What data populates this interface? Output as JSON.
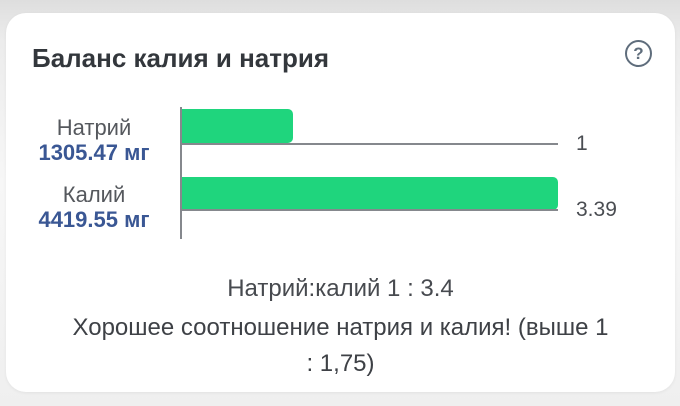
{
  "card": {
    "title": "Баланс калия и натрия",
    "help": {
      "glyph": "?"
    }
  },
  "chart_data": {
    "type": "bar",
    "orientation": "horizontal",
    "title": "Баланс калия и натрия",
    "bar_color": "#1fd57d",
    "axis_color": "#85888d",
    "max_ratio": 3.39,
    "rows": [
      {
        "label": "Натрий",
        "amount": "1305.47 мг",
        "ratio": 1,
        "ratio_label": "1"
      },
      {
        "label": "Калий",
        "amount": "4419.55 мг",
        "ratio": 3.39,
        "ratio_label": "3.39"
      }
    ]
  },
  "summary": {
    "ratio_text": "Натрий:калий 1 : 3.4",
    "message_lines": [
      "Хорошее соотношение натрия и калия! (выше 1",
      ": 1,75)"
    ]
  },
  "colors": {
    "amount_blue": "#3a5794",
    "label_gray": "#55585d",
    "bar_green": "#1fd57d"
  }
}
